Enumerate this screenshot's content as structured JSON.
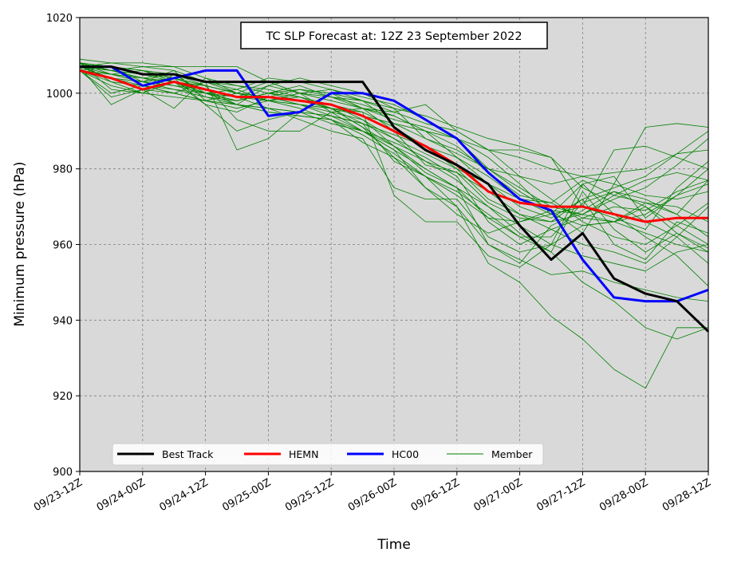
{
  "chart_data": {
    "type": "line",
    "title": "TC SLP Forecast at: 12Z 23 September 2022",
    "xlabel": "Time",
    "ylabel": "Minimum pressure (hPa)",
    "ylim": [
      900,
      1020
    ],
    "yticks": [
      900,
      920,
      940,
      960,
      980,
      1000,
      1020
    ],
    "xlim": [
      0,
      120
    ],
    "x_tick_hours": [
      0,
      12,
      24,
      36,
      48,
      60,
      72,
      84,
      96,
      108,
      120
    ],
    "x_tick_labels": [
      "09/23-12Z",
      "09/24-00Z",
      "09/24-12Z",
      "09/25-00Z",
      "09/25-12Z",
      "09/26-00Z",
      "09/26-12Z",
      "09/27-00Z",
      "09/27-12Z",
      "09/28-00Z",
      "09/28-12Z"
    ],
    "grid": true,
    "legend_position": "lower-left",
    "background_color": "#d9d9d9",
    "x_hours": [
      0,
      6,
      12,
      18,
      24,
      30,
      36,
      42,
      48,
      54,
      60,
      66,
      72,
      78,
      84,
      90,
      96,
      102,
      108,
      114,
      120
    ],
    "series": [
      {
        "name": "Best Track",
        "color": "#000000",
        "width": 3,
        "values": [
          1007,
          1007,
          1005,
          1005,
          1003,
          1003,
          1003,
          1003,
          1003,
          1003,
          991,
          985,
          981,
          976,
          965,
          956,
          963,
          951,
          947,
          945,
          937
        ]
      },
      {
        "name": "HEMN",
        "color": "#ff0000",
        "width": 3,
        "values": [
          1006,
          1004,
          1001,
          1003,
          1001,
          999,
          999,
          998,
          997,
          994,
          990,
          986,
          981,
          974,
          971,
          970,
          970,
          968,
          966,
          967,
          967
        ]
      },
      {
        "name": "HC00",
        "color": "#0000ff",
        "width": 3,
        "values": [
          1007,
          1007,
          1002,
          1004,
          1006,
          1006,
          994,
          995,
          1000,
          1000,
          998,
          993,
          988,
          979,
          972,
          969,
          956,
          946,
          945,
          945,
          948
        ]
      },
      {
        "name": "Member",
        "color": "#008000",
        "width": 0.8,
        "values": [
          1009,
          1008,
          1008,
          1007,
          1004,
          1002,
          1000,
          998,
          996,
          994,
          992,
          990,
          988,
          985,
          983,
          980,
          978,
          976,
          973,
          972,
          974
        ]
      }
    ],
    "members": [
      [
        1009,
        1008,
        1008,
        1007,
        1004,
        1002,
        1000,
        998,
        996,
        994,
        992,
        990,
        988,
        985,
        983,
        980,
        978,
        976,
        973,
        972,
        974
      ],
      [
        1008,
        1001,
        1000,
        1003,
        997,
        990,
        993,
        995,
        1000,
        998,
        992,
        988,
        985,
        980,
        975,
        970,
        968,
        966,
        963,
        960,
        958
      ],
      [
        1007,
        997,
        1001,
        996,
        1004,
        1000,
        998,
        997,
        994,
        992,
        988,
        984,
        980,
        976,
        970,
        967,
        972,
        975,
        978,
        984,
        990
      ],
      [
        1006,
        1000,
        1002,
        1000,
        1003,
        985,
        988,
        995,
        994,
        990,
        985,
        980,
        975,
        970,
        965,
        960,
        957,
        955,
        953,
        958,
        960
      ],
      [
        1008,
        1003,
        1000,
        1005,
        1002,
        993,
        990,
        990,
        995,
        996,
        995,
        997,
        990,
        985,
        985,
        983,
        970,
        985,
        986,
        983,
        980
      ],
      [
        1007,
        1006,
        1007,
        1007,
        1007,
        1007,
        1003,
        1000,
        998,
        996,
        994,
        990,
        983,
        976,
        972,
        968,
        976,
        978,
        967,
        973,
        976
      ],
      [
        1007,
        1004,
        1003,
        1006,
        998,
        1000,
        1003,
        1000,
        999,
        998,
        996,
        994,
        991,
        988,
        986,
        983,
        975,
        971,
        966,
        962,
        955
      ],
      [
        1006,
        999,
        1001,
        1000,
        998,
        997,
        1002,
        1000,
        995,
        990,
        985,
        975,
        970,
        960,
        955,
        965,
        969,
        974,
        972,
        968,
        962
      ],
      [
        1007,
        1005,
        1004,
        1003,
        1002,
        1000,
        999,
        997,
        996,
        992,
        982,
        978,
        970,
        955,
        950,
        941,
        935,
        927,
        922,
        938,
        938
      ],
      [
        1008,
        1006,
        1004,
        1005,
        1000,
        998,
        1000,
        999,
        997,
        993,
        988,
        982,
        977,
        970,
        963,
        958,
        950,
        945,
        938,
        935,
        938
      ],
      [
        1007,
        1006,
        1005,
        1004,
        1002,
        1000,
        999,
        998,
        997,
        995,
        991,
        986,
        980,
        972,
        968,
        964,
        960,
        958,
        955,
        962,
        970
      ],
      [
        1006,
        1005,
        1006,
        1003,
        1000,
        1001,
        1004,
        1003,
        1001,
        998,
        995,
        992,
        990,
        985,
        978,
        972,
        966,
        962,
        960,
        965,
        971
      ],
      [
        1008,
        1007,
        1006,
        1004,
        1001,
        997,
        996,
        995,
        992,
        990,
        986,
        982,
        979,
        974,
        968,
        966,
        968,
        973,
        977,
        979,
        977
      ],
      [
        1007,
        1004,
        1002,
        1001,
        999,
        997,
        995,
        994,
        993,
        987,
        983,
        978,
        974,
        968,
        962,
        962,
        971,
        974,
        970,
        965,
        960
      ],
      [
        1006,
        1005,
        1004,
        1003,
        999,
        998,
        1000,
        1002,
        999,
        996,
        993,
        991,
        988,
        983,
        976,
        968,
        965,
        966,
        968,
        973,
        980
      ],
      [
        1007,
        1008,
        1007,
        1006,
        1003,
        1000,
        998,
        999,
        996,
        991,
        986,
        979,
        975,
        960,
        956,
        952,
        953,
        950,
        948,
        946,
        945
      ],
      [
        1006,
        1003,
        1002,
        1000,
        998,
        996,
        998,
        1000,
        1001,
        999,
        997,
        993,
        988,
        980,
        974,
        969,
        968,
        972,
        975,
        981,
        988
      ],
      [
        1008,
        1005,
        1003,
        1004,
        997,
        995,
        999,
        1001,
        1000,
        996,
        990,
        981,
        979,
        971,
        967,
        966,
        972,
        960,
        956,
        966,
        963
      ],
      [
        1007,
        1006,
        1004,
        1002,
        1001,
        999,
        1002,
        1004,
        1002,
        1000,
        996,
        988,
        984,
        980,
        978,
        976,
        978,
        979,
        980,
        984,
        985
      ],
      [
        1006,
        1007,
        1003,
        1001,
        1000,
        999,
        996,
        993,
        990,
        988,
        975,
        972,
        972,
        962,
        958,
        960,
        976,
        968,
        962,
        957,
        949
      ],
      [
        1007,
        1005,
        1003,
        1004,
        1002,
        1000,
        999,
        997,
        996,
        995,
        973,
        966,
        966,
        957,
        954,
        960,
        965,
        966,
        971,
        970,
        966
      ],
      [
        1008,
        1006,
        1004,
        1003,
        1000,
        999,
        998,
        997,
        995,
        993,
        986,
        980,
        975,
        967,
        962,
        958,
        974,
        964,
        958,
        963,
        958
      ],
      [
        1007,
        1006,
        1005,
        1005,
        1003,
        1001,
        998,
        996,
        993,
        990,
        987,
        983,
        978,
        966,
        960,
        964,
        967,
        970,
        969,
        974,
        977
      ],
      [
        1006,
        1004,
        1003,
        1002,
        1000,
        997,
        995,
        994,
        993,
        989,
        984,
        978,
        973,
        967,
        966,
        968,
        970,
        967,
        964,
        975,
        982
      ],
      [
        1007,
        1007,
        1005,
        1003,
        1000,
        998,
        1000,
        1001,
        999,
        997,
        994,
        990,
        986,
        979,
        973,
        971,
        977,
        973,
        971,
        968,
        977
      ],
      [
        1006,
        1002,
        1000,
        999,
        998,
        997,
        996,
        995,
        994,
        992,
        989,
        986,
        983,
        978,
        972,
        971,
        967,
        966,
        970,
        963,
        959
      ],
      [
        1008,
        1007,
        1006,
        1005,
        1003,
        1002,
        1001,
        999,
        996,
        991,
        983,
        975,
        968,
        963,
        966,
        969,
        963,
        976,
        991,
        992,
        991
      ]
    ]
  }
}
